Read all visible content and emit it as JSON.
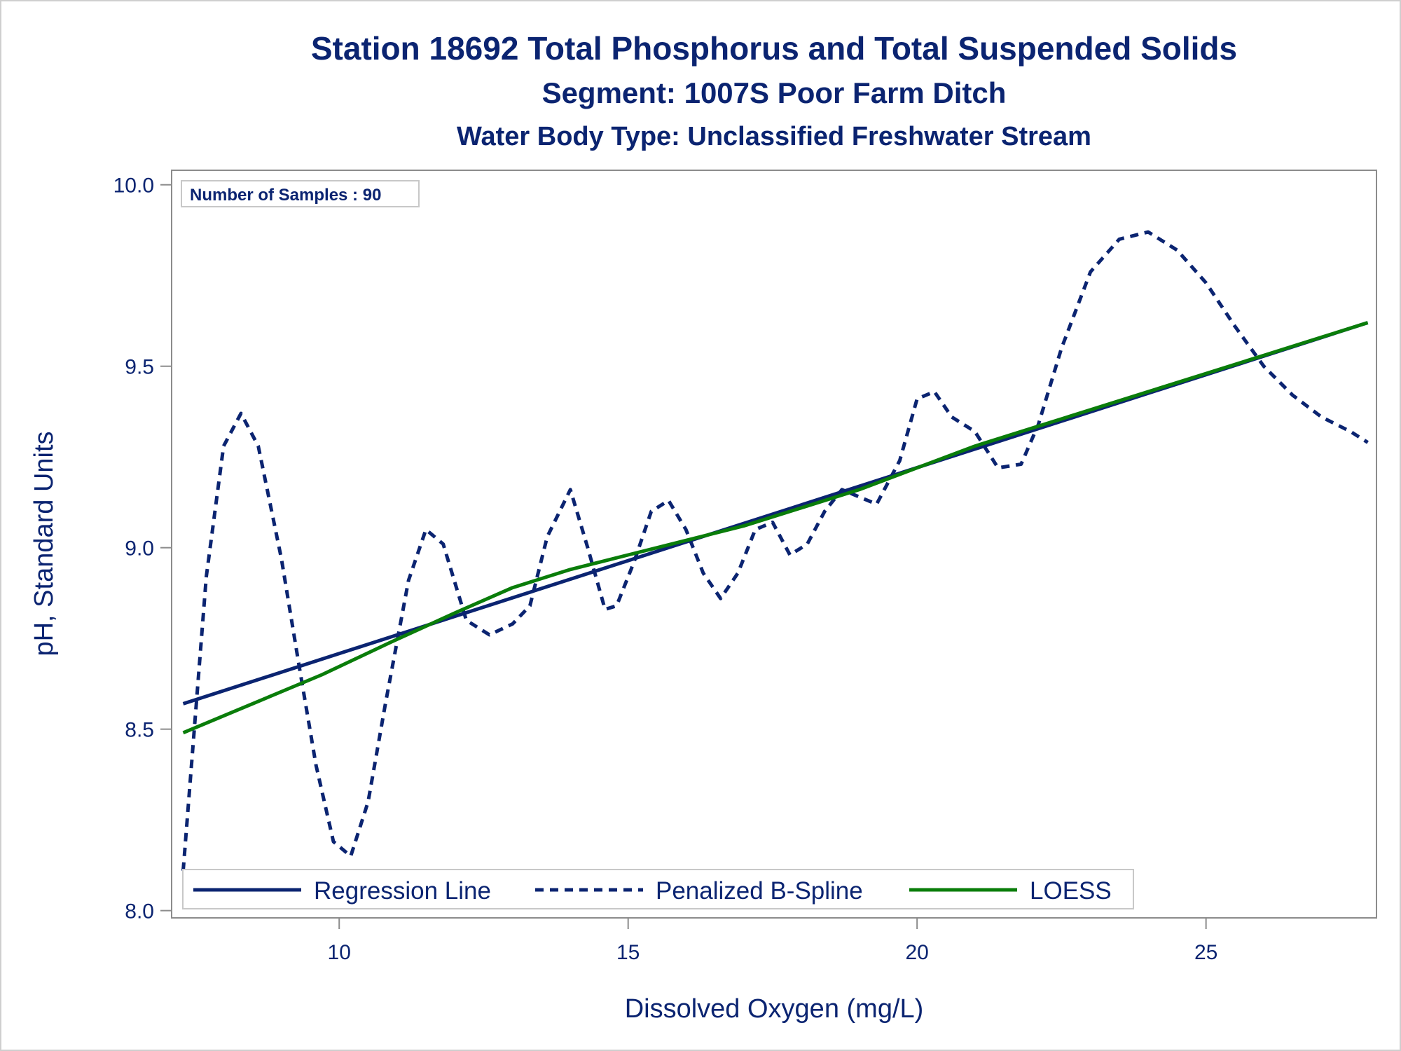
{
  "colors": {
    "regression": "#0b2471",
    "spline": "#0b2471",
    "loess": "#0a7d0a",
    "text": "#0b2471",
    "frame": "#8c8c8c"
  },
  "chart_data": {
    "type": "line",
    "title": "Station 18692  Total Phosphorus and Total Suspended Solids",
    "subtitle": "Segment: 1007S  Poor Farm Ditch",
    "subtitle2": "Water Body Type: Unclassified Freshwater Stream",
    "xlabel": "Dissolved Oxygen (mg/L)",
    "ylabel": "pH, Standard Units",
    "xlim": [
      7.1,
      27.95
    ],
    "ylim": [
      7.98,
      10.04
    ],
    "xticks": [
      "10",
      "15",
      "20",
      "25"
    ],
    "yticks": [
      "8.0",
      "8.5",
      "9.0",
      "9.5",
      "10.0"
    ],
    "grid": false,
    "legend_placement": "bottom-left inside",
    "annotation": "Number of Samples : 90",
    "series": [
      {
        "name": "Regression Line",
        "style": "solid",
        "x": [
          7.3,
          27.8
        ],
        "y": [
          8.57,
          9.62
        ]
      },
      {
        "name": "Penalized B-Spline",
        "style": "dashed",
        "x": [
          7.3,
          7.7,
          8.0,
          8.3,
          8.6,
          9.0,
          9.3,
          9.6,
          9.9,
          10.2,
          10.5,
          10.8,
          11.2,
          11.5,
          11.8,
          12.2,
          12.6,
          13.0,
          13.3,
          13.6,
          14.0,
          14.3,
          14.6,
          14.8,
          15.1,
          15.4,
          15.7,
          16.0,
          16.3,
          16.6,
          16.9,
          17.2,
          17.5,
          17.8,
          18.1,
          18.4,
          18.7,
          19.0,
          19.3,
          19.7,
          20.0,
          20.3,
          20.6,
          21.0,
          21.4,
          21.8,
          22.1,
          22.5,
          23.0,
          23.5,
          24.0,
          24.5,
          25.0,
          25.5,
          26.0,
          26.5,
          27.0,
          27.5,
          27.8
        ],
        "y": [
          8.11,
          8.92,
          9.28,
          9.37,
          9.28,
          8.97,
          8.68,
          8.4,
          8.19,
          8.15,
          8.3,
          8.57,
          8.91,
          9.05,
          9.01,
          8.8,
          8.76,
          8.79,
          8.84,
          9.03,
          9.16,
          9.0,
          8.83,
          8.84,
          8.96,
          9.1,
          9.13,
          9.05,
          8.93,
          8.86,
          8.93,
          9.05,
          9.07,
          8.98,
          9.01,
          9.1,
          9.16,
          9.14,
          9.12,
          9.24,
          9.41,
          9.43,
          9.36,
          9.32,
          9.22,
          9.23,
          9.34,
          9.55,
          9.76,
          9.85,
          9.87,
          9.82,
          9.73,
          9.61,
          9.5,
          9.42,
          9.36,
          9.32,
          9.29
        ]
      },
      {
        "name": "LOESS",
        "style": "solid",
        "x": [
          7.3,
          8.5,
          9.7,
          10.9,
          12.0,
          13.0,
          14.0,
          15.0,
          16.0,
          17.0,
          18.0,
          19.0,
          20.0,
          21.0,
          22.0,
          23.0,
          24.0,
          25.0,
          26.0,
          27.0,
          27.8
        ],
        "y": [
          8.49,
          8.57,
          8.65,
          8.74,
          8.82,
          8.89,
          8.94,
          8.98,
          9.02,
          9.06,
          9.11,
          9.16,
          9.22,
          9.28,
          9.33,
          9.38,
          9.43,
          9.48,
          9.53,
          9.58,
          9.62
        ]
      }
    ]
  }
}
